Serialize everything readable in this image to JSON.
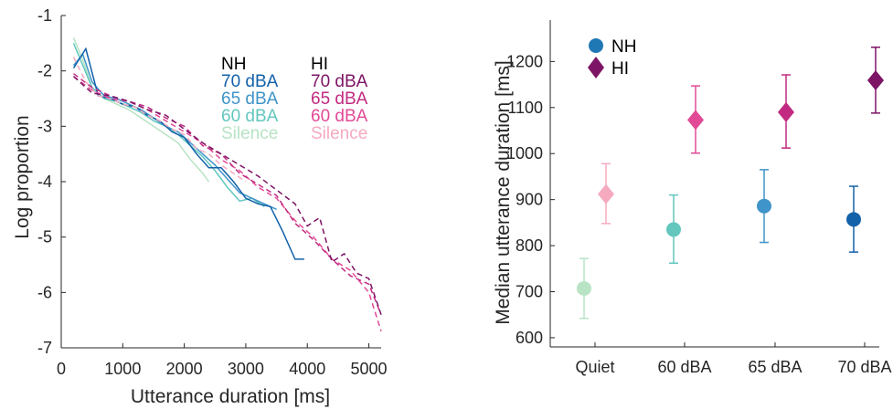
{
  "chart_data": [
    {
      "type": "line",
      "xlabel": "Utterance duration [ms]",
      "ylabel": "Log proportion",
      "xlim": [
        0,
        5200
      ],
      "ylim": [
        -7,
        -1
      ],
      "xticks": [
        0,
        1000,
        2000,
        3000,
        4000,
        5000
      ],
      "yticks": [
        -7,
        -6,
        -5,
        -4,
        -3,
        -2,
        -1
      ],
      "legend_groups": [
        {
          "header": "NH",
          "header_color": "#000000"
        },
        {
          "header": "HI",
          "header_color": "#000000"
        }
      ],
      "series": [
        {
          "name": "Silence",
          "group": "NH",
          "color": "#b8e3c4",
          "dash": false,
          "x": [
            200,
            350,
            500,
            700,
            900,
            1100,
            1300,
            1500,
            1700,
            1900,
            2100,
            2300,
            2400
          ],
          "y": [
            -1.4,
            -1.8,
            -2.3,
            -2.5,
            -2.6,
            -2.7,
            -2.85,
            -3.0,
            -3.15,
            -3.3,
            -3.6,
            -3.85,
            -4.0
          ]
        },
        {
          "name": "60 dBA",
          "group": "NH",
          "color": "#63c7be",
          "dash": false,
          "x": [
            200,
            350,
            500,
            700,
            900,
            1100,
            1300,
            1500,
            1700,
            1900,
            2100,
            2300,
            2500,
            2700,
            2900,
            3100,
            3300
          ],
          "y": [
            -1.5,
            -1.9,
            -2.3,
            -2.5,
            -2.55,
            -2.65,
            -2.75,
            -2.9,
            -3.0,
            -3.15,
            -3.35,
            -3.55,
            -3.8,
            -4.1,
            -4.35,
            -4.3,
            -4.45
          ]
        },
        {
          "name": "65 dBA",
          "group": "NH",
          "color": "#3f94c9",
          "dash": false,
          "x": [
            200,
            350,
            500,
            700,
            900,
            1100,
            1300,
            1500,
            1700,
            1900,
            2100,
            2300,
            2500,
            2700,
            2900,
            3100,
            3300,
            3500
          ],
          "y": [
            -1.9,
            -1.7,
            -2.2,
            -2.45,
            -2.5,
            -2.6,
            -2.7,
            -2.85,
            -3.0,
            -3.1,
            -3.3,
            -3.5,
            -3.7,
            -3.95,
            -4.2,
            -4.3,
            -4.4,
            -4.5
          ]
        },
        {
          "name": "70 dBA",
          "group": "NH",
          "color": "#1361a9",
          "dash": false,
          "x": [
            200,
            400,
            600,
            800,
            1000,
            1200,
            1400,
            1600,
            1800,
            2000,
            2200,
            2400,
            2600,
            2800,
            3000,
            3200,
            3400,
            3600,
            3800,
            3950
          ],
          "y": [
            -1.95,
            -1.6,
            -2.45,
            -2.5,
            -2.6,
            -2.65,
            -2.8,
            -2.9,
            -3.1,
            -3.2,
            -3.5,
            -3.75,
            -3.75,
            -4.0,
            -4.3,
            -4.4,
            -4.45,
            -4.9,
            -5.4,
            -5.4
          ]
        },
        {
          "name": "Silence",
          "group": "HI",
          "color": "#f5aac0",
          "dash": true,
          "x": [
            200,
            400,
            600,
            800,
            1000,
            1200,
            1400,
            1600,
            1800,
            2000,
            2200,
            2400,
            2600,
            2800,
            3000
          ],
          "y": [
            -1.75,
            -2.2,
            -2.45,
            -2.5,
            -2.6,
            -2.65,
            -2.8,
            -2.9,
            -3.05,
            -3.15,
            -3.4,
            -3.5,
            -3.7,
            -3.85,
            -4.0
          ]
        },
        {
          "name": "60 dBA",
          "group": "HI",
          "color": "#e24a96",
          "dash": true,
          "x": [
            200,
            500,
            800,
            1100,
            1400,
            1700,
            2000,
            2300,
            2600,
            2900,
            3200,
            3500,
            3800,
            4100,
            4400,
            4700,
            5000,
            5200
          ],
          "y": [
            -2.1,
            -2.35,
            -2.5,
            -2.55,
            -2.7,
            -2.9,
            -3.1,
            -3.3,
            -3.6,
            -3.8,
            -4.1,
            -4.3,
            -4.7,
            -5.0,
            -5.4,
            -5.6,
            -6.0,
            -6.7
          ]
        },
        {
          "name": "65 dBA",
          "group": "HI",
          "color": "#c12a80",
          "dash": true,
          "x": [
            200,
            500,
            800,
            1100,
            1400,
            1700,
            2000,
            2300,
            2600,
            2900,
            3200,
            3500,
            3800,
            4100,
            4400,
            4700,
            5000,
            5200
          ],
          "y": [
            -2.05,
            -2.3,
            -2.45,
            -2.55,
            -2.65,
            -2.85,
            -3.0,
            -3.35,
            -3.5,
            -3.85,
            -4.05,
            -4.25,
            -4.75,
            -5.05,
            -5.4,
            -5.7,
            -5.85,
            -6.4
          ]
        },
        {
          "name": "70 dBA",
          "group": "HI",
          "color": "#7d1465",
          "dash": true,
          "x": [
            200,
            500,
            800,
            1100,
            1400,
            1700,
            2000,
            2300,
            2600,
            2900,
            3200,
            3500,
            3800,
            4000,
            4200,
            4400,
            4600,
            4800,
            5000,
            5200
          ],
          "y": [
            -2.1,
            -2.4,
            -2.45,
            -2.55,
            -2.7,
            -2.8,
            -3.05,
            -3.3,
            -3.5,
            -3.7,
            -3.9,
            -4.15,
            -4.4,
            -4.8,
            -4.65,
            -5.45,
            -5.3,
            -5.65,
            -5.75,
            -6.4
          ]
        }
      ]
    },
    {
      "type": "scatter",
      "ylabel": "Median utterance duration [ms]",
      "xlabel": "",
      "ylim": [
        580,
        1290
      ],
      "yticks": [
        600,
        700,
        800,
        900,
        1000,
        1100,
        1200
      ],
      "categories": [
        "Quiet",
        "60 dBA",
        "65 dBA",
        "70 dBA"
      ],
      "legend_location": "top-left",
      "series": [
        {
          "name": "NH",
          "marker": "circle",
          "legend_color": "#1f78b4",
          "points": [
            {
              "category": "Quiet",
              "value": 707,
              "low": 642,
              "high": 772,
              "color": "#b8e3c4"
            },
            {
              "category": "60 dBA",
              "value": 835,
              "low": 762,
              "high": 910,
              "color": "#63c7be"
            },
            {
              "category": "65 dBA",
              "value": 886,
              "low": 807,
              "high": 965,
              "color": "#3f94c9"
            },
            {
              "category": "70 dBA",
              "value": 857,
              "low": 786,
              "high": 929,
              "color": "#1361a9"
            }
          ]
        },
        {
          "name": "HI",
          "marker": "diamond",
          "legend_color": "#7d1465",
          "points": [
            {
              "category": "Quiet",
              "value": 912,
              "low": 848,
              "high": 978,
              "color": "#f5aac0"
            },
            {
              "category": "60 dBA",
              "value": 1073,
              "low": 1001,
              "high": 1147,
              "color": "#e24a96"
            },
            {
              "category": "65 dBA",
              "value": 1090,
              "low": 1012,
              "high": 1171,
              "color": "#c12a80"
            },
            {
              "category": "70 dBA",
              "value": 1159,
              "low": 1088,
              "high": 1231,
              "color": "#7d1465"
            }
          ]
        }
      ]
    }
  ]
}
